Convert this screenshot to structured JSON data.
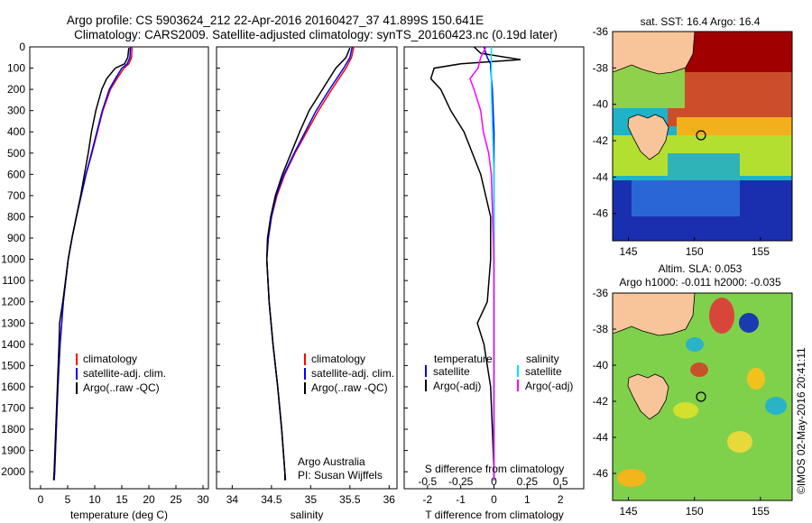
{
  "header": {
    "line1": "Argo profile: CS 5903624_212 22-Apr-2016 20160427_37 41.899S 150.641E",
    "line2": "Climatology: CARS2009. Satellite-adjusted climatology: synTS_20160423.nc (0.19d later)"
  },
  "depth_axis": {
    "ticks": [
      "0",
      "100",
      "200",
      "300",
      "400",
      "500",
      "600",
      "700",
      "800",
      "900",
      "1000",
      "1100",
      "1200",
      "1300",
      "1400",
      "1500",
      "1600",
      "1700",
      "1800",
      "1900",
      "2000"
    ]
  },
  "footer_vertical": "©IMOS 02-May-2016 20:41:11",
  "colors": {
    "climatology": "#ff0000",
    "satellite": "#0000ff",
    "argo": "#000000",
    "sat_salinity": "#00e5ff",
    "argo_salinity": "#ff00ff",
    "land": "#f8c49a"
  },
  "panels": {
    "temperature": {
      "xlabel": "temperature (deg C)",
      "ticks": [
        "0",
        "5",
        "10",
        "15",
        "20",
        "25",
        "30"
      ],
      "legend": [
        "climatology",
        "satellite-adj. clim.",
        "Argo(..raw -QC)"
      ]
    },
    "salinity": {
      "xlabel": "salinity",
      "ticks": [
        "34",
        "34.5",
        "35",
        "35.5",
        "36"
      ],
      "legend": [
        "climatology",
        "satellite-adj. clim.",
        "Argo(..raw -QC)"
      ],
      "credit1": "Argo Australia",
      "credit2": "PI: Susan Wijffels"
    },
    "difference": {
      "xlabel": "T difference from climatology",
      "top_label": "S difference from climatology",
      "t_ticks": [
        "-2",
        "-1",
        "0",
        "1",
        "2"
      ],
      "s_ticks": [
        "-0.5",
        "-0.25",
        "0",
        "0.25",
        "0.5"
      ],
      "legend_temp_title": "temperature",
      "legend_sal_title": "salinity",
      "legend_temp": [
        "satellite",
        "Argo(-adj)"
      ],
      "legend_sal": [
        "satellite",
        "Argo(-adj)"
      ]
    }
  },
  "maps": {
    "sst": {
      "title": "sat. SST: 16.4  Argo: 16.4"
    },
    "sla": {
      "title1": "Altim. SLA: 0.053",
      "title2": "Argo h1000: -0.011 h2000: -0.035"
    },
    "lat_ticks": [
      "-36",
      "-38",
      "-40",
      "-42",
      "-44",
      "-46"
    ],
    "lon_ticks": [
      "145",
      "150",
      "155"
    ]
  },
  "chart_data": [
    {
      "type": "line",
      "title": "",
      "xlabel": "temperature (deg C)",
      "ylabel": "",
      "xlim": [
        -2,
        31
      ],
      "ylim": [
        2080,
        0
      ],
      "series": [
        {
          "name": "climatology",
          "color": "#ff0000",
          "depth": [
            0,
            50,
            80,
            100,
            150,
            200,
            300,
            400,
            500,
            600,
            700,
            800,
            900,
            1000,
            1200,
            1400,
            1600,
            1800,
            2000,
            2040
          ],
          "values": [
            16.9,
            16.8,
            16.3,
            15.4,
            14.1,
            12.9,
            11.5,
            10.5,
            9.5,
            8.4,
            7.5,
            6.6,
            5.8,
            5.1,
            4.2,
            3.6,
            3.2,
            2.9,
            2.6,
            2.5
          ]
        },
        {
          "name": "satellite-adj. clim.",
          "color": "#0000ff",
          "depth": [
            0,
            50,
            80,
            100,
            150,
            200,
            300,
            400,
            500,
            600,
            700,
            800,
            900,
            1000,
            1200,
            1400,
            1600,
            1800,
            2000,
            2040
          ],
          "values": [
            16.6,
            16.5,
            16.0,
            15.0,
            13.8,
            12.7,
            11.4,
            10.4,
            9.4,
            8.4,
            7.5,
            6.6,
            5.8,
            5.1,
            4.2,
            3.6,
            3.2,
            2.9,
            2.6,
            2.5
          ]
        },
        {
          "name": "Argo(..raw -QC)",
          "color": "#000000",
          "depth": [
            5,
            50,
            80,
            100,
            150,
            200,
            300,
            400,
            500,
            600,
            700,
            800,
            900,
            1000,
            1200,
            1300,
            1400,
            1600,
            1800,
            2000,
            2040
          ],
          "values": [
            16.3,
            16.1,
            15.5,
            13.8,
            12.2,
            11.3,
            10.2,
            9.4,
            8.8,
            8.1,
            7.4,
            6.6,
            5.8,
            5.1,
            4.1,
            3.5,
            3.4,
            3.1,
            2.8,
            2.5,
            2.4
          ]
        }
      ]
    },
    {
      "type": "line",
      "title": "",
      "xlabel": "salinity",
      "ylabel": "",
      "xlim": [
        33.8,
        36.1
      ],
      "ylim": [
        2080,
        0
      ],
      "series": [
        {
          "name": "climatology",
          "color": "#ff0000",
          "depth": [
            0,
            50,
            100,
            200,
            300,
            400,
            500,
            600,
            700,
            800,
            900,
            1000,
            1200,
            1400,
            1600,
            1800,
            2000,
            2040
          ],
          "values": [
            35.55,
            35.52,
            35.45,
            35.27,
            35.1,
            34.95,
            34.8,
            34.67,
            34.57,
            34.5,
            34.46,
            34.44,
            34.47,
            34.52,
            34.58,
            34.63,
            34.67,
            34.68
          ]
        },
        {
          "name": "satellite-adj. clim.",
          "color": "#0000ff",
          "depth": [
            0,
            50,
            100,
            200,
            300,
            400,
            500,
            600,
            700,
            800,
            900,
            1000,
            1200,
            1400,
            1600,
            1800,
            2000,
            2040
          ],
          "values": [
            35.53,
            35.5,
            35.42,
            35.24,
            35.07,
            34.93,
            34.79,
            34.66,
            34.56,
            34.5,
            34.46,
            34.44,
            34.47,
            34.52,
            34.58,
            34.63,
            34.67,
            34.68
          ]
        },
        {
          "name": "Argo(..raw -QC)",
          "color": "#000000",
          "depth": [
            5,
            50,
            100,
            200,
            300,
            400,
            500,
            600,
            700,
            800,
            900,
            1000,
            1200,
            1400,
            1600,
            1800,
            2000,
            2040
          ],
          "values": [
            35.5,
            35.45,
            35.32,
            35.15,
            34.98,
            34.86,
            34.75,
            34.64,
            34.55,
            34.49,
            34.45,
            34.44,
            34.47,
            34.52,
            34.58,
            34.63,
            34.67,
            34.67
          ]
        }
      ]
    },
    {
      "type": "line",
      "title": "",
      "xlabel": "T difference from climatology",
      "ylabel": "",
      "xlim": [
        -2.7,
        2.7
      ],
      "ylim": [
        2080,
        0
      ],
      "series": [
        {
          "name": "temperature satellite",
          "color": "#0000ff",
          "depth": [
            0,
            50,
            80,
            100,
            200,
            400,
            600,
            800,
            1000,
            2040
          ],
          "values": [
            -0.3,
            -0.2,
            -0.1,
            -0.1,
            -0.05,
            0,
            0,
            0,
            0,
            0
          ]
        },
        {
          "name": "temperature Argo(-adj)",
          "color": "#000000",
          "depth": [
            0,
            30,
            60,
            80,
            100,
            150,
            200,
            300,
            400,
            600,
            800,
            1000,
            1200,
            1300,
            1400,
            1600,
            1800,
            2000,
            2040
          ],
          "values": [
            -0.6,
            -0.4,
            0.8,
            -1.0,
            -1.8,
            -1.9,
            -1.6,
            -1.3,
            -0.9,
            -0.4,
            -0.1,
            -0.1,
            -0.2,
            -0.5,
            -0.3,
            -0.1,
            -0.05,
            0,
            0
          ]
        },
        {
          "name": "salinity satellite",
          "color": "#00e5ff",
          "depth": [
            0,
            50,
            100,
            200,
            400,
            600,
            800,
            1000,
            2040
          ],
          "values": [
            -0.02,
            -0.02,
            -0.02,
            -0.02,
            -0.01,
            0,
            0,
            0,
            0
          ]
        },
        {
          "name": "salinity Argo(-adj)",
          "color": "#ff00ff",
          "depth": [
            0,
            50,
            100,
            150,
            200,
            300,
            400,
            500,
            600,
            800,
            1000,
            2040
          ],
          "values": [
            -0.06,
            -0.1,
            -0.12,
            -0.18,
            -0.15,
            -0.1,
            -0.08,
            -0.04,
            -0.02,
            -0.01,
            0,
            0
          ]
        }
      ]
    }
  ]
}
